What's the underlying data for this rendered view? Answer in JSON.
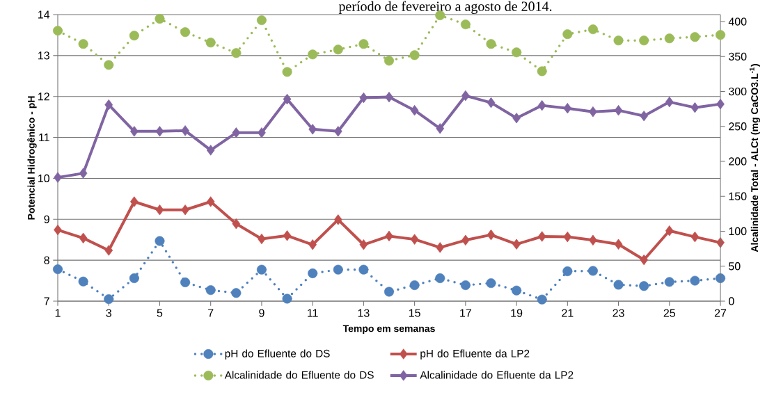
{
  "chart_data": {
    "type": "line",
    "title": "período de fevereiro a agosto de 2014.",
    "xlabel": "Tempo em semanas",
    "ylabel": "Potencial Hidrogênico - pH",
    "y2label": "Alcalinidade Total - ALCt (mg CaCO3.L$^{-1}$)",
    "x": [
      1,
      2,
      3,
      4,
      5,
      6,
      7,
      8,
      9,
      10,
      11,
      12,
      13,
      14,
      15,
      16,
      17,
      18,
      19,
      20,
      21,
      22,
      23,
      24,
      25,
      26,
      27
    ],
    "xlim": [
      1,
      27
    ],
    "xticks": [
      1,
      3,
      5,
      7,
      9,
      11,
      13,
      15,
      17,
      19,
      21,
      23,
      25,
      27
    ],
    "ylim": [
      7,
      14
    ],
    "yticks": [
      7,
      8,
      9,
      10,
      11,
      12,
      13,
      14
    ],
    "y2lim": [
      0,
      410
    ],
    "y2ticks": [
      0,
      50,
      100,
      150,
      200,
      250,
      300,
      350,
      400
    ],
    "grid": "y",
    "legend": "bottom",
    "series": [
      {
        "name": "pH do Efluente do DS",
        "color": "#4f81bd",
        "marker": "circle",
        "line_style": "dotted",
        "values": [
          7.78,
          7.48,
          7.05,
          7.56,
          8.47,
          7.46,
          7.27,
          7.2,
          7.77,
          7.06,
          7.68,
          7.77,
          7.77,
          7.23,
          7.39,
          7.56,
          7.39,
          7.44,
          7.26,
          7.04,
          7.73,
          7.74,
          7.4,
          7.37,
          7.47,
          7.5,
          7.56
        ]
      },
      {
        "name": "pH do Efluente da LP2",
        "color": "#c0504d",
        "marker": "diamond",
        "line_style": "solid",
        "values": [
          8.74,
          8.54,
          8.24,
          9.43,
          9.23,
          9.23,
          9.43,
          8.89,
          8.52,
          8.6,
          8.38,
          8.99,
          8.38,
          8.59,
          8.51,
          8.31,
          8.49,
          8.62,
          8.39,
          8.58,
          8.57,
          8.49,
          8.39,
          8.01,
          8.72,
          8.57,
          8.43
        ]
      },
      {
        "name": "Alcalinidade do Efluente do DS",
        "color": "#9bbb59",
        "marker": "circle",
        "line_style": "dotted",
        "axis": "y2",
        "values": [
          387,
          368,
          338,
          380,
          404,
          385,
          370,
          355,
          402,
          328,
          353,
          360,
          368,
          344,
          352,
          409,
          396,
          368,
          356,
          329,
          382,
          389,
          373,
          373,
          376,
          378,
          381
        ]
      },
      {
        "name": "Alcalinidade do Efluente da LP2",
        "color": "#8064a2",
        "marker": "diamond",
        "line_style": "solid",
        "axis": "y2",
        "values": [
          177,
          183,
          281,
          243,
          243,
          244,
          216,
          241,
          241,
          289,
          246,
          243,
          291,
          292,
          273,
          247,
          294,
          284,
          262,
          280,
          276,
          271,
          273,
          265,
          285,
          277,
          282
        ]
      }
    ]
  }
}
